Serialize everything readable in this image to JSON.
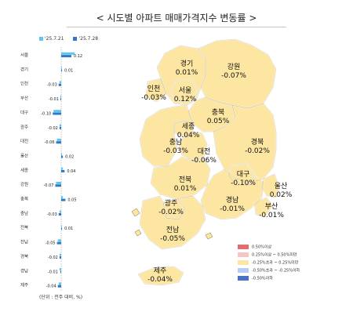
{
  "title": "< 시도별 아파트 매매가격지수 변동률 >",
  "unit_note": "(단위 : 전주 대비, %)",
  "colors": {
    "prev_series": "#5cc6ef",
    "curr_series": "#2f78c6",
    "map_fill": "#fce6a2",
    "map_stroke": "#ffffff",
    "map_outline": "#7a6a4a"
  },
  "chart_data": [
    {
      "type": "bar",
      "orientation": "horizontal",
      "categories": [
        "서울",
        "경기",
        "인천",
        "부산",
        "대구",
        "광주",
        "대전",
        "울산",
        "세종",
        "강원",
        "충북",
        "충남",
        "전북",
        "전남",
        "경북",
        "경남",
        "제주"
      ],
      "series": [
        {
          "name": "'25.7.21",
          "values": [
            0.16,
            0.0,
            -0.02,
            -0.01,
            -0.09,
            -0.02,
            -0.05,
            0.01,
            0.02,
            -0.06,
            0.02,
            -0.02,
            0.0,
            -0.04,
            -0.02,
            -0.02,
            -0.03
          ]
        },
        {
          "name": "'25.7.28",
          "values": [
            0.12,
            0.01,
            -0.03,
            -0.01,
            -0.1,
            -0.02,
            -0.06,
            0.02,
            0.04,
            -0.07,
            0.05,
            -0.03,
            0.01,
            -0.05,
            -0.02,
            -0.01,
            -0.04
          ]
        }
      ],
      "data_labels": [
        "0.12",
        "0.01",
        "-0.03",
        "-0.01",
        "-0.10",
        "-0.02",
        "-0.06",
        "0.02",
        "0.04",
        "-0.07",
        "0.05",
        "-0.03",
        "0.01",
        "-0.05",
        "-0.02",
        "-0.01",
        "-0.04"
      ]
    },
    {
      "type": "choropleth-map",
      "regions": [
        {
          "name": "경기",
          "value": "0.01%"
        },
        {
          "name": "강원",
          "value": "-0.07%"
        },
        {
          "name": "인천",
          "value": "-0.03%"
        },
        {
          "name": "서울",
          "value": "0.12%"
        },
        {
          "name": "충북",
          "value": "0.05%"
        },
        {
          "name": "세종",
          "value": "0.04%"
        },
        {
          "name": "충남",
          "value": "-0.03%"
        },
        {
          "name": "대전",
          "value": "-0.06%"
        },
        {
          "name": "경북",
          "value": "-0.02%"
        },
        {
          "name": "대구",
          "value": "-0.10%"
        },
        {
          "name": "전북",
          "value": "0.01%"
        },
        {
          "name": "울산",
          "value": "0.02%"
        },
        {
          "name": "경남",
          "value": "-0.01%"
        },
        {
          "name": "부산",
          "value": "-0.01%"
        },
        {
          "name": "광주",
          "value": "-0.02%"
        },
        {
          "name": "전남",
          "value": "-0.05%"
        },
        {
          "name": "제주",
          "value": "-0.04%"
        }
      ],
      "legend": [
        {
          "label": "0.50%이상",
          "color": "#e36c6c"
        },
        {
          "label": "0.25%이상 ~ 0.50%미만",
          "color": "#f6c6c6"
        },
        {
          "label": "-0.25%초과 ~ 0.25%미만",
          "color": "#fce6a2"
        },
        {
          "label": "-0.50%초과 ~ -0.25%이하",
          "color": "#b9cdf0"
        },
        {
          "label": "-0.50%이하",
          "color": "#4a72c4"
        }
      ]
    }
  ]
}
